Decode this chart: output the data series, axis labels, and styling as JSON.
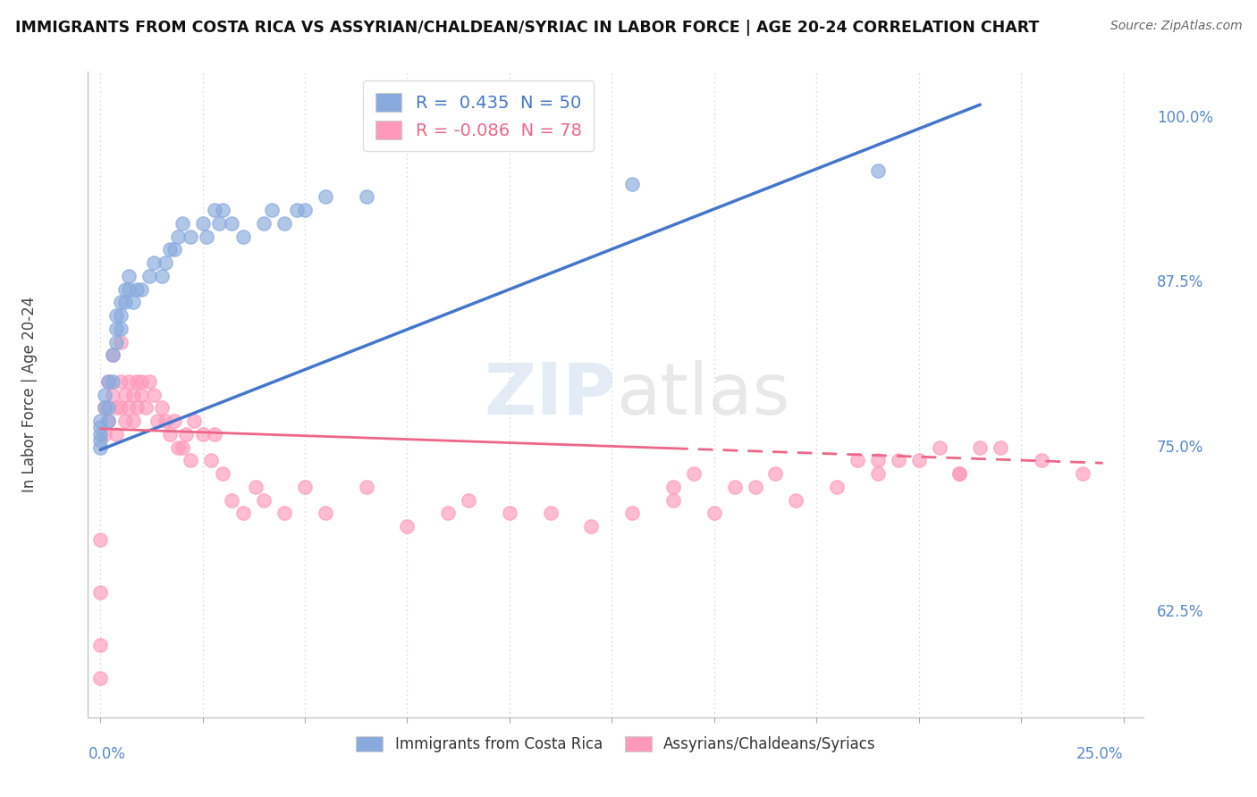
{
  "title": "IMMIGRANTS FROM COSTA RICA VS ASSYRIAN/CHALDEAN/SYRIAC IN LABOR FORCE | AGE 20-24 CORRELATION CHART",
  "source": "Source: ZipAtlas.com",
  "ylabel_label": "In Labor Force | Age 20-24",
  "blue_R": 0.435,
  "blue_N": 50,
  "pink_R": -0.086,
  "pink_N": 78,
  "blue_color": "#88AADD",
  "pink_color": "#FF99BB",
  "blue_line_color": "#4477CC",
  "pink_line_color": "#EE6688",
  "watermark": "ZIPatlas",
  "legend_blue_label": "R =  0.435  N = 50",
  "legend_pink_label": "R = -0.086  N = 78",
  "bottom_legend_blue": "Immigrants from Costa Rica",
  "bottom_legend_pink": "Assyrians/Chaldeans/Syriacs",
  "xlim": [
    0.0,
    0.25
  ],
  "ylim": [
    0.55,
    1.03
  ],
  "ytick_vals": [
    1.0,
    0.875,
    0.75,
    0.625
  ],
  "ytick_labels": [
    "100.0%",
    "87.5%",
    "75.0%",
    "62.5%"
  ],
  "blue_scatter_x": [
    0.0,
    0.0,
    0.0,
    0.0,
    0.0,
    0.001,
    0.001,
    0.002,
    0.002,
    0.002,
    0.003,
    0.003,
    0.004,
    0.004,
    0.004,
    0.005,
    0.005,
    0.005,
    0.006,
    0.006,
    0.007,
    0.007,
    0.008,
    0.009,
    0.01,
    0.012,
    0.013,
    0.015,
    0.016,
    0.017,
    0.018,
    0.019,
    0.02,
    0.022,
    0.025,
    0.026,
    0.028,
    0.029,
    0.03,
    0.032,
    0.035,
    0.04,
    0.042,
    0.045,
    0.048,
    0.05,
    0.055,
    0.065,
    0.13,
    0.19
  ],
  "blue_scatter_y": [
    0.75,
    0.755,
    0.76,
    0.765,
    0.77,
    0.78,
    0.79,
    0.77,
    0.78,
    0.8,
    0.8,
    0.82,
    0.83,
    0.84,
    0.85,
    0.84,
    0.85,
    0.86,
    0.86,
    0.87,
    0.87,
    0.88,
    0.86,
    0.87,
    0.87,
    0.88,
    0.89,
    0.88,
    0.89,
    0.9,
    0.9,
    0.91,
    0.92,
    0.91,
    0.92,
    0.91,
    0.93,
    0.92,
    0.93,
    0.92,
    0.91,
    0.92,
    0.93,
    0.92,
    0.93,
    0.93,
    0.94,
    0.94,
    0.95,
    0.96
  ],
  "pink_scatter_x": [
    0.0,
    0.0,
    0.0,
    0.0,
    0.001,
    0.001,
    0.002,
    0.002,
    0.003,
    0.003,
    0.004,
    0.004,
    0.005,
    0.005,
    0.005,
    0.006,
    0.006,
    0.007,
    0.007,
    0.008,
    0.008,
    0.009,
    0.009,
    0.01,
    0.01,
    0.011,
    0.012,
    0.013,
    0.014,
    0.015,
    0.016,
    0.017,
    0.018,
    0.019,
    0.02,
    0.021,
    0.022,
    0.023,
    0.025,
    0.027,
    0.028,
    0.03,
    0.032,
    0.035,
    0.038,
    0.04,
    0.045,
    0.05,
    0.055,
    0.065,
    0.075,
    0.085,
    0.09,
    0.1,
    0.11,
    0.12,
    0.13,
    0.14,
    0.15,
    0.16,
    0.17,
    0.18,
    0.19,
    0.2,
    0.21,
    0.22,
    0.23,
    0.24,
    0.19,
    0.21,
    0.205,
    0.195,
    0.215,
    0.185,
    0.14,
    0.145,
    0.155,
    0.165
  ],
  "pink_scatter_y": [
    0.575,
    0.6,
    0.64,
    0.68,
    0.76,
    0.78,
    0.77,
    0.8,
    0.79,
    0.82,
    0.76,
    0.78,
    0.78,
    0.8,
    0.83,
    0.77,
    0.79,
    0.8,
    0.78,
    0.79,
    0.77,
    0.8,
    0.78,
    0.79,
    0.8,
    0.78,
    0.8,
    0.79,
    0.77,
    0.78,
    0.77,
    0.76,
    0.77,
    0.75,
    0.75,
    0.76,
    0.74,
    0.77,
    0.76,
    0.74,
    0.76,
    0.73,
    0.71,
    0.7,
    0.72,
    0.71,
    0.7,
    0.72,
    0.7,
    0.72,
    0.69,
    0.7,
    0.71,
    0.7,
    0.7,
    0.69,
    0.7,
    0.71,
    0.7,
    0.72,
    0.71,
    0.72,
    0.73,
    0.74,
    0.73,
    0.75,
    0.74,
    0.73,
    0.74,
    0.73,
    0.75,
    0.74,
    0.75,
    0.74,
    0.72,
    0.73,
    0.72,
    0.73
  ],
  "blue_trend_x0": 0.0,
  "blue_trend_x1": 0.215,
  "blue_trend_y0": 0.748,
  "blue_trend_y1": 1.01,
  "pink_trend_x0": 0.0,
  "pink_trend_x1": 0.245,
  "pink_trend_y0": 0.764,
  "pink_trend_y1": 0.738
}
